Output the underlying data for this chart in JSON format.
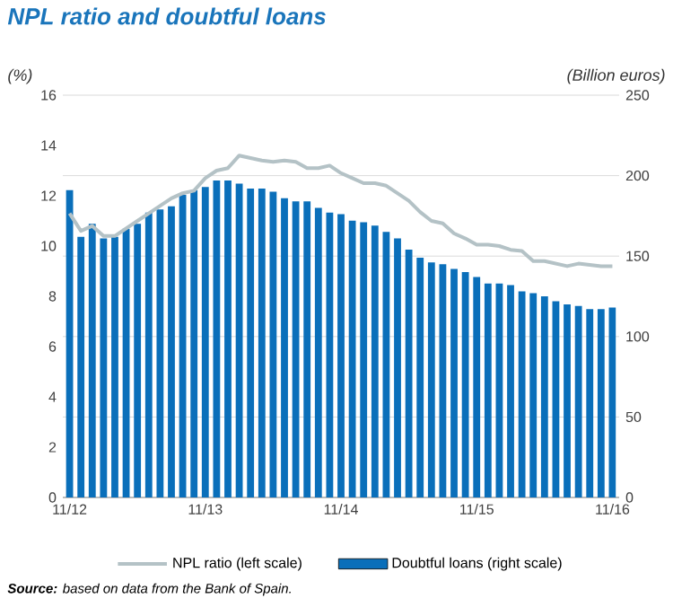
{
  "chart_data": {
    "type": "bar",
    "title": "NPL ratio and doubtful loans",
    "ylabel": "(%)",
    "y2label": "(Billion euros)",
    "categories": [
      "11/12",
      null,
      null,
      null,
      null,
      null,
      null,
      null,
      null,
      null,
      null,
      null,
      "11/13",
      null,
      null,
      null,
      null,
      null,
      null,
      null,
      null,
      null,
      null,
      null,
      "11/14",
      null,
      null,
      null,
      null,
      null,
      null,
      null,
      null,
      null,
      null,
      null,
      "11/15",
      null,
      null,
      null,
      null,
      null,
      null,
      null,
      null,
      null,
      null,
      null,
      "11/16"
    ],
    "series": [
      {
        "name": "NPL ratio (left scale)",
        "type": "line",
        "color": "#b4c2c6",
        "values": [
          11.3,
          10.6,
          10.8,
          10.4,
          10.4,
          10.7,
          11.0,
          11.3,
          11.6,
          11.9,
          12.1,
          12.2,
          12.7,
          13.0,
          13.1,
          13.6,
          13.5,
          13.4,
          13.35,
          13.4,
          13.35,
          13.1,
          13.1,
          13.2,
          12.9,
          12.7,
          12.5,
          12.5,
          12.4,
          12.1,
          11.8,
          11.35,
          11.0,
          10.9,
          10.5,
          10.3,
          10.05,
          10.05,
          10.0,
          9.85,
          9.8,
          9.4,
          9.4,
          9.3,
          9.2,
          9.3,
          9.25,
          9.2,
          9.2
        ]
      },
      {
        "name": "Doubtful loans (right scale)",
        "axis": "y2",
        "color": "#0a6fba",
        "values": [
          191,
          162,
          170,
          161,
          162,
          167,
          170,
          177,
          179,
          181,
          188,
          191,
          193,
          197,
          197,
          195,
          192,
          192,
          190,
          186,
          184,
          184,
          180,
          177,
          176,
          172,
          171,
          169,
          165,
          161,
          154,
          149,
          146,
          145,
          142,
          140,
          137,
          133,
          133,
          132,
          128,
          127,
          125,
          122,
          120,
          119,
          117,
          117,
          118
        ]
      }
    ],
    "ylim": [
      0,
      16
    ],
    "yticks": [
      0,
      2,
      4,
      6,
      8,
      10,
      12,
      14,
      16
    ],
    "y2lim": [
      0,
      250
    ],
    "y2ticks": [
      0,
      50,
      100,
      150,
      200,
      250
    ],
    "grid": "y",
    "legend": "bottom",
    "annotations": [
      "**Source:** based on data from the Bank of Spain."
    ]
  }
}
